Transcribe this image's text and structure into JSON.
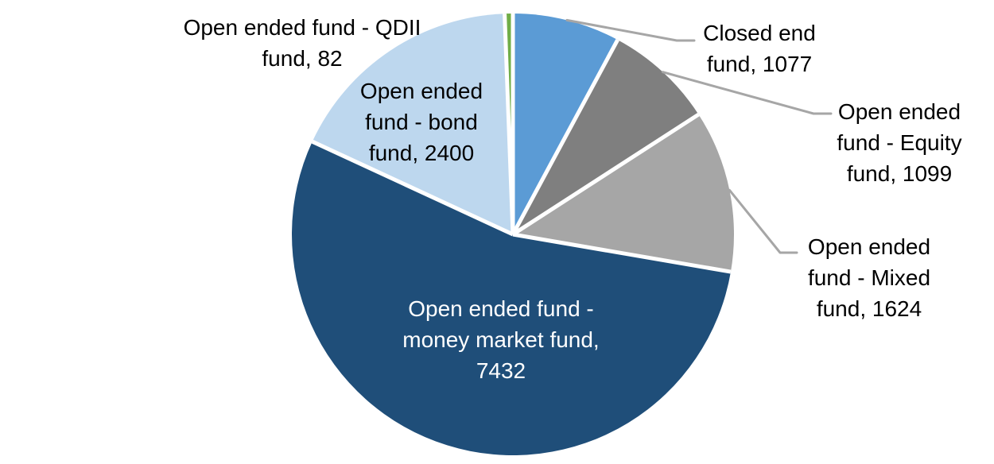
{
  "chart_data": {
    "type": "pie",
    "title": "",
    "background": "#FFFFFF",
    "leader_line_color": "#A6A6A6",
    "label_text_color": "#000000",
    "direction": "clockwise",
    "start_angle_deg": 0,
    "categories": [
      "Closed end fund",
      "Open ended fund - Equity fund",
      "Open ended fund - Mixed fund",
      "Open ended fund - money market fund",
      "Open ended fund - bond fund",
      "Open ended fund - QDII fund"
    ],
    "values": [
      1077,
      1099,
      1624,
      7432,
      2400,
      82
    ],
    "slices": [
      {
        "id": "closed-end-fund",
        "label": "Closed end fund",
        "value": 1077,
        "color": "#5B9BD5",
        "label_lines": [
          "Closed end",
          "fund, 1077"
        ],
        "label_placement": "outside",
        "leader_line": true
      },
      {
        "id": "open-ended-equity-fund",
        "label": "Open ended fund - Equity fund",
        "value": 1099,
        "color": "#7F7F7F",
        "label_lines": [
          "Open ended",
          "fund - Equity",
          "fund, 1099"
        ],
        "label_placement": "outside",
        "leader_line": true
      },
      {
        "id": "open-ended-mixed-fund",
        "label": "Open ended fund - Mixed fund",
        "value": 1624,
        "color": "#A6A6A6",
        "label_lines": [
          "Open ended",
          "fund - Mixed",
          "fund, 1624"
        ],
        "label_placement": "outside",
        "leader_line": true
      },
      {
        "id": "open-ended-money-market-fund",
        "label": "Open ended fund - money market fund",
        "value": 7432,
        "color": "#1F4E79",
        "label_lines": [
          "Open ended fund -",
          "money market fund,",
          "7432"
        ],
        "label_placement": "inside",
        "label_color": "#FFFFFF",
        "leader_line": false
      },
      {
        "id": "open-ended-bond-fund",
        "label": "Open ended fund - bond fund",
        "value": 2400,
        "color": "#BDD7EE",
        "label_lines": [
          "Open ended",
          "fund - bond",
          "fund, 2400"
        ],
        "label_placement": "on-slice",
        "leader_line": false
      },
      {
        "id": "open-ended-qdii-fund",
        "label": "Open ended fund - QDII fund",
        "value": 82,
        "color": "#70AD47",
        "label_lines": [
          "Open ended fund - QDII",
          "fund, 82"
        ],
        "label_placement": "outside",
        "leader_line": false
      }
    ]
  }
}
